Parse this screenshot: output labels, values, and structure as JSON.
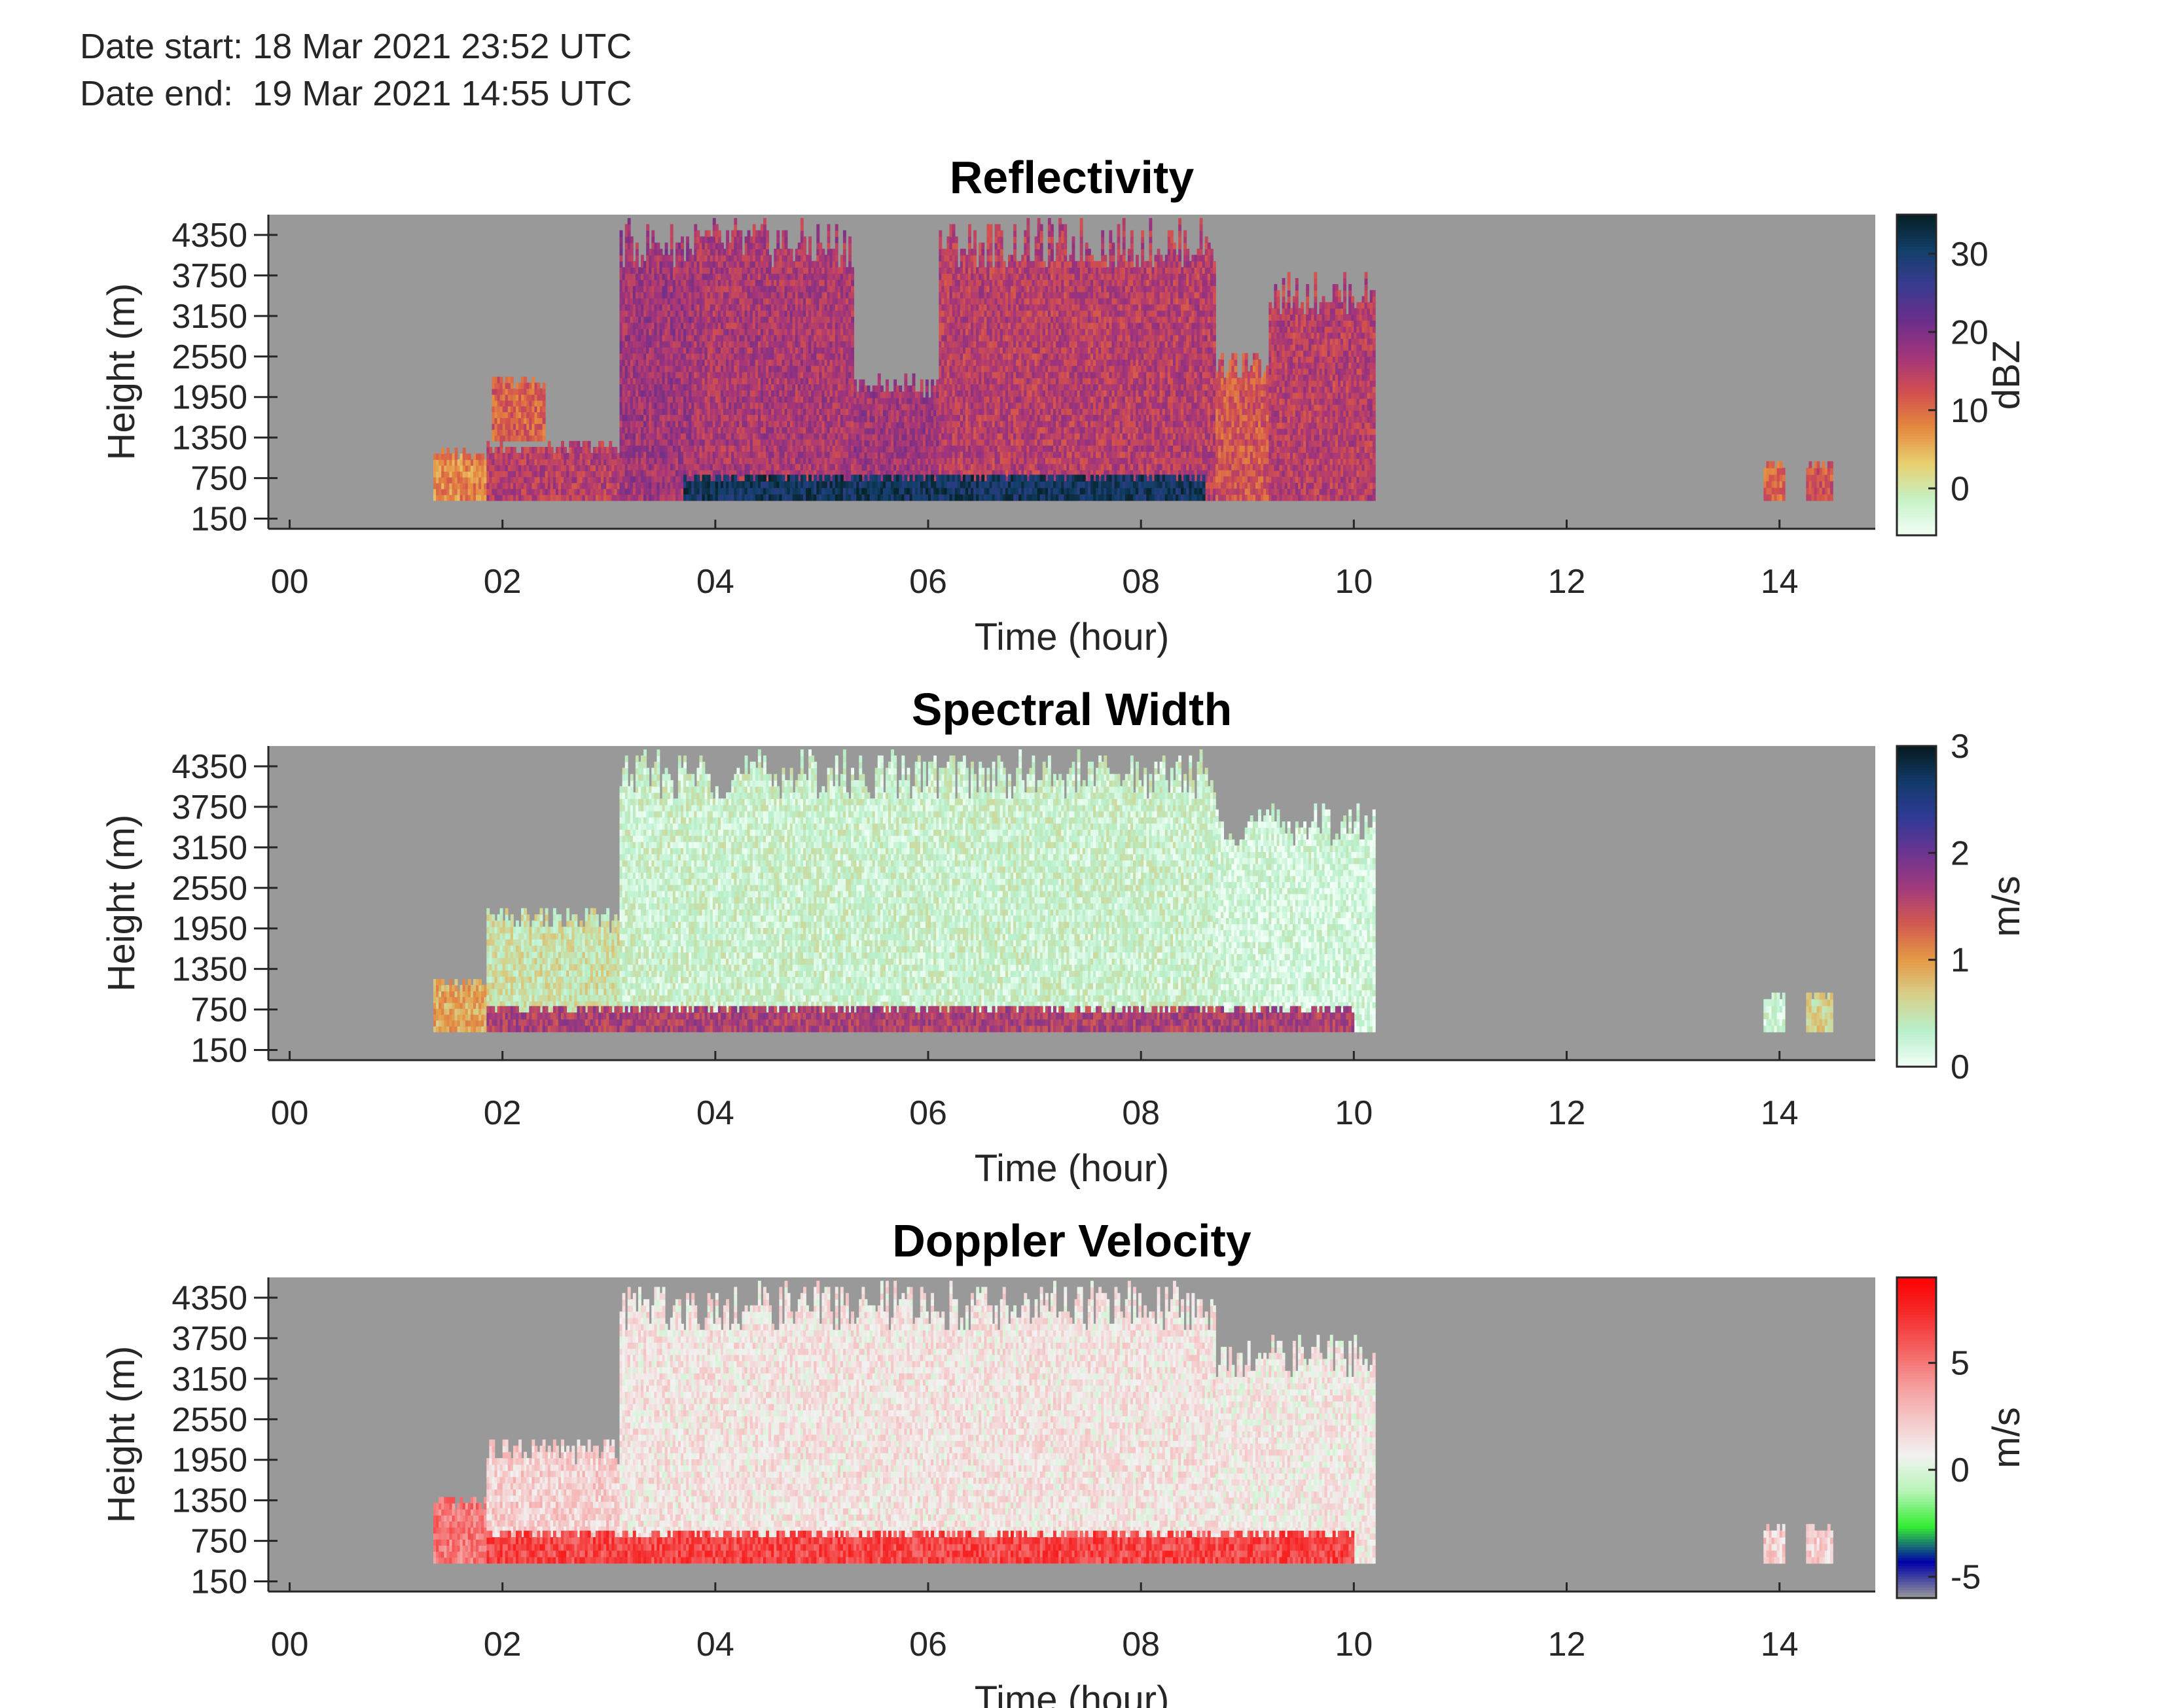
{
  "header": {
    "date_start": "Date start: 18 Mar 2021 23:52 UTC",
    "date_end": "Date end:  19 Mar 2021 14:55 UTC"
  },
  "colors": {
    "missing": "#999999",
    "axis": "#262626"
  },
  "chart_data": [
    {
      "type": "heatmap",
      "title": "Reflectivity",
      "xlabel": "Time (hour)",
      "ylabel": "Height (m)",
      "xticks": [
        "00",
        "02",
        "04",
        "06",
        "08",
        "10",
        "12",
        "14"
      ],
      "yticks": [
        "150",
        "750",
        "1350",
        "1950",
        "2550",
        "3150",
        "3750",
        "4350"
      ],
      "xlim": [
        -0.2,
        14.9
      ],
      "ylim": [
        0,
        4650
      ],
      "colorbar": {
        "label": "dBZ",
        "ticks": [
          "0",
          "10",
          "20",
          "30"
        ],
        "range": [
          -6,
          35
        ]
      },
      "colormap": [
        "#f2fff6",
        "#c6f2c6",
        "#e8d070",
        "#e58a3f",
        "#d24f4f",
        "#a4357a",
        "#6b2e8a",
        "#3a3a90",
        "#123f6a",
        "#061f22"
      ],
      "background": "#999999",
      "dominant_field": "mid-to-high reflectivity cloud between ~01:20 and ~10:15, strongest echoes (>30 dBZ) near 500 m between 04 and 08",
      "regions": [
        {
          "t0": 1.35,
          "t1": 1.85,
          "h0": 420,
          "h1": 1200,
          "v": 8
        },
        {
          "t0": 1.85,
          "t1": 3.1,
          "h0": 420,
          "h1": 1300,
          "v": 15
        },
        {
          "t0": 1.9,
          "t1": 2.4,
          "h0": 1300,
          "h1": 2250,
          "v": 11
        },
        {
          "t0": 3.1,
          "t1": 3.8,
          "h0": 420,
          "h1": 4600,
          "v": 17
        },
        {
          "t0": 3.8,
          "t1": 5.3,
          "h0": 420,
          "h1": 4600,
          "v": 16
        },
        {
          "t0": 5.3,
          "t1": 6.1,
          "h0": 420,
          "h1": 2300,
          "v": 17
        },
        {
          "t0": 6.1,
          "t1": 8.7,
          "h0": 420,
          "h1": 4600,
          "v": 15
        },
        {
          "t0": 8.7,
          "t1": 9.2,
          "h0": 420,
          "h1": 2600,
          "v": 12
        },
        {
          "t0": 9.2,
          "t1": 10.2,
          "h0": 420,
          "h1": 3800,
          "v": 15
        },
        {
          "t0": 3.7,
          "t1": 8.6,
          "h0": 420,
          "h1": 800,
          "v": 31
        },
        {
          "t0": 13.85,
          "t1": 14.05,
          "h0": 420,
          "h1": 1000,
          "v": 10
        },
        {
          "t0": 14.25,
          "t1": 14.5,
          "h0": 420,
          "h1": 1000,
          "v": 12
        }
      ]
    },
    {
      "type": "heatmap",
      "title": "Spectral Width",
      "xlabel": "Time (hour)",
      "ylabel": "Height (m)",
      "xticks": [
        "00",
        "02",
        "04",
        "06",
        "08",
        "10",
        "12",
        "14"
      ],
      "yticks": [
        "150",
        "750",
        "1350",
        "1950",
        "2550",
        "3150",
        "3750",
        "4350"
      ],
      "xlim": [
        -0.2,
        14.9
      ],
      "ylim": [
        0,
        4650
      ],
      "colorbar": {
        "label": "m/s",
        "ticks": [
          "0",
          "1",
          "2",
          "3"
        ],
        "range": [
          0,
          3
        ]
      },
      "colormap": [
        "#f2fff6",
        "#b8f0cc",
        "#d6d08a",
        "#e59a45",
        "#d35a4f",
        "#a33a7c",
        "#6b3491",
        "#2f3a95",
        "#123a6a",
        "#061a1c"
      ],
      "background": "#999999",
      "dominant_field": "low spectral width (<0.5 m/s) aloft, larger widths (1-2 m/s) in the lowest ~700 m",
      "regions": [
        {
          "t0": 1.35,
          "t1": 1.85,
          "h0": 420,
          "h1": 1200,
          "v": 0.9
        },
        {
          "t0": 1.85,
          "t1": 3.1,
          "h0": 420,
          "h1": 2250,
          "v": 0.5
        },
        {
          "t0": 3.1,
          "t1": 8.7,
          "h0": 420,
          "h1": 4600,
          "v": 0.3
        },
        {
          "t0": 8.7,
          "t1": 10.2,
          "h0": 420,
          "h1": 3800,
          "v": 0.2
        },
        {
          "t0": 1.85,
          "t1": 10.0,
          "h0": 420,
          "h1": 800,
          "v": 1.6
        },
        {
          "t0": 13.85,
          "t1": 14.05,
          "h0": 420,
          "h1": 1000,
          "v": 0.2
        },
        {
          "t0": 14.25,
          "t1": 14.5,
          "h0": 420,
          "h1": 1000,
          "v": 0.6
        }
      ]
    },
    {
      "type": "heatmap",
      "title": "Doppler Velocity",
      "xlabel": "Time (hour)",
      "ylabel": "Height (m)",
      "xticks": [
        "00",
        "02",
        "04",
        "06",
        "08",
        "10",
        "12",
        "14"
      ],
      "yticks": [
        "150",
        "750",
        "1350",
        "1950",
        "2550",
        "3150",
        "3750",
        "4350"
      ],
      "xlim": [
        -0.2,
        14.9
      ],
      "ylim": [
        0,
        4650
      ],
      "colorbar": {
        "label": "m/s",
        "ticks": [
          "-5",
          "0",
          "5"
        ],
        "range": [
          -6,
          9
        ]
      },
      "colormap": [
        "#999999",
        "#0000aa",
        "#33ee33",
        "#b8f5b8",
        "#f2f2f2",
        "#f5c8c8",
        "#f59a9a",
        "#f56060",
        "#f52a2a",
        "#ff0000"
      ],
      "background": "#999999",
      "dominant_field": "weak positive velocities (0-2 m/s) aloft, strong positive velocities (5-8 m/s) in the lowest ~700 m",
      "regions": [
        {
          "t0": 1.35,
          "t1": 1.85,
          "h0": 420,
          "h1": 1400,
          "v": 5
        },
        {
          "t0": 1.85,
          "t1": 3.1,
          "h0": 420,
          "h1": 2250,
          "v": 2
        },
        {
          "t0": 3.1,
          "t1": 8.7,
          "h0": 420,
          "h1": 4600,
          "v": 1.2
        },
        {
          "t0": 8.7,
          "t1": 10.2,
          "h0": 420,
          "h1": 3800,
          "v": 1
        },
        {
          "t0": 1.85,
          "t1": 10.0,
          "h0": 420,
          "h1": 900,
          "v": 6.5
        },
        {
          "t0": 13.85,
          "t1": 14.05,
          "h0": 420,
          "h1": 1000,
          "v": 2
        },
        {
          "t0": 14.25,
          "t1": 14.5,
          "h0": 420,
          "h1": 1000,
          "v": 2
        }
      ]
    }
  ]
}
